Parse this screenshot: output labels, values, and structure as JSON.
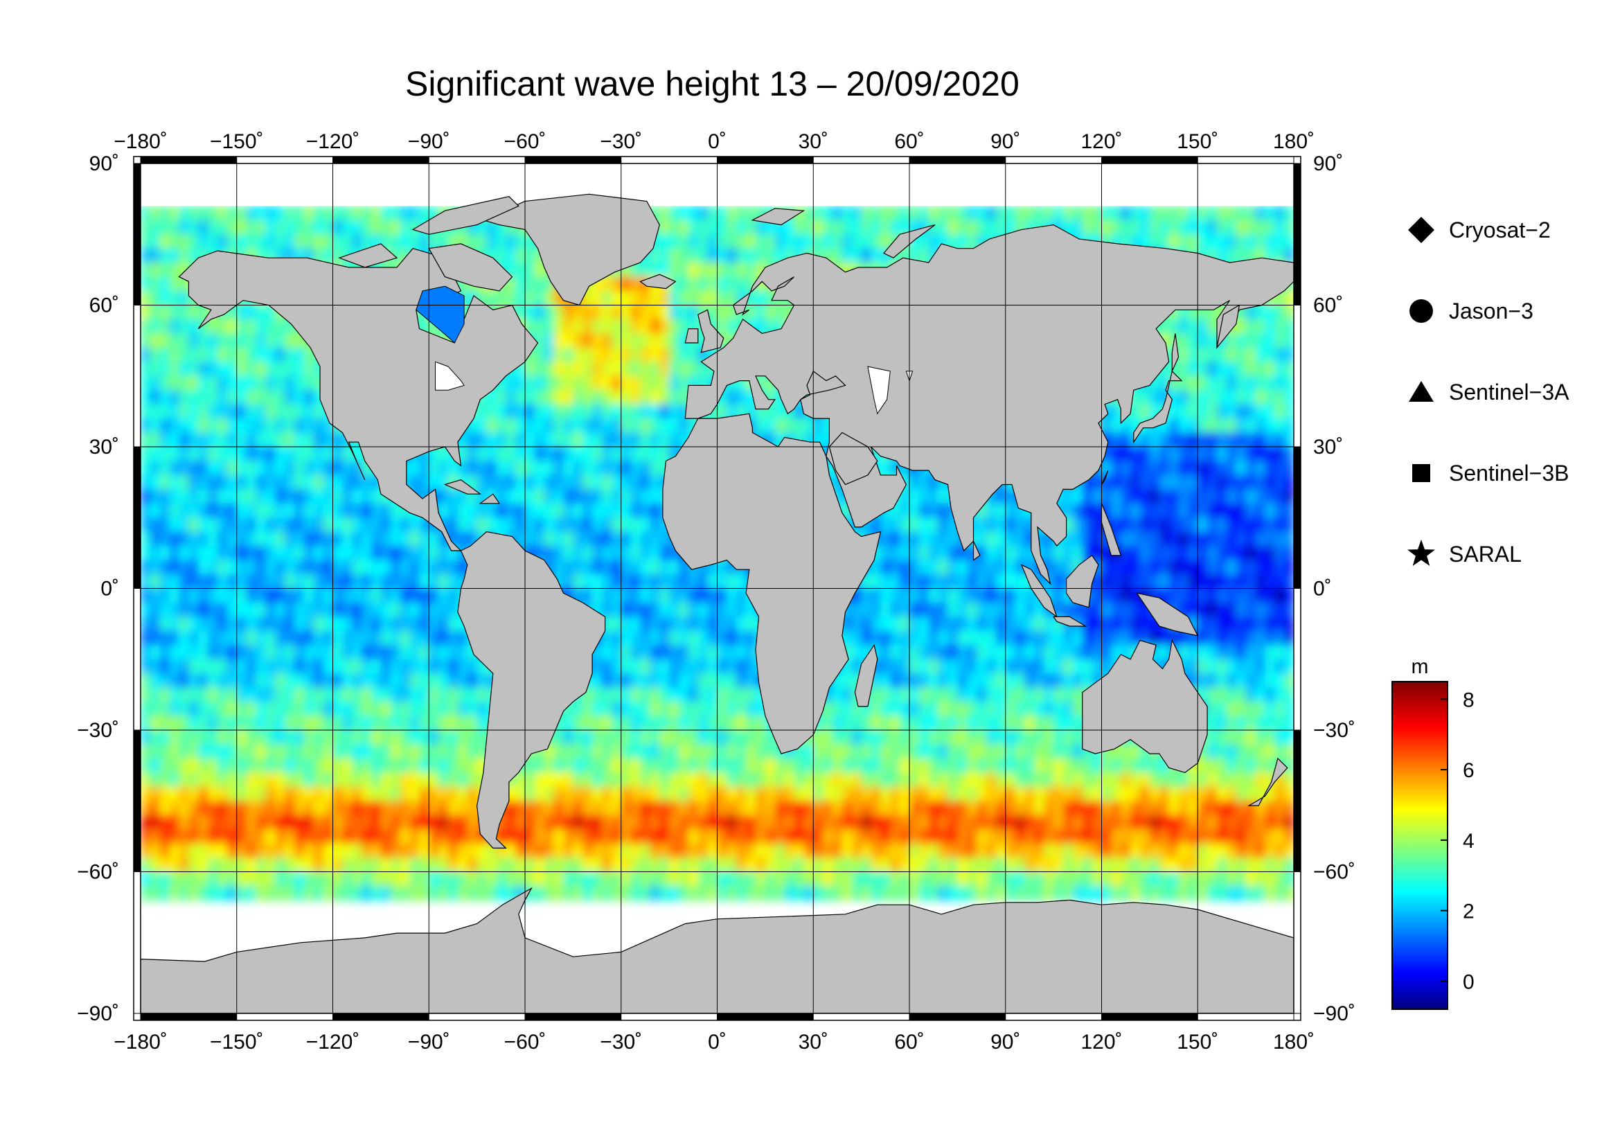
{
  "title": "Significant wave height 13 – 20/09/2020",
  "map": {
    "projection": "equirectangular",
    "lon_range": [
      -180,
      180
    ],
    "lat_range": [
      -90,
      90
    ],
    "lon_ticks": [
      {
        "v": -180,
        "label": "−180˚"
      },
      {
        "v": -150,
        "label": "−150˚"
      },
      {
        "v": -120,
        "label": "−120˚"
      },
      {
        "v": -90,
        "label": "−90˚"
      },
      {
        "v": -60,
        "label": "−60˚"
      },
      {
        "v": -30,
        "label": "−30˚"
      },
      {
        "v": 0,
        "label": "0˚"
      },
      {
        "v": 30,
        "label": "30˚"
      },
      {
        "v": 60,
        "label": "60˚"
      },
      {
        "v": 90,
        "label": "90˚"
      },
      {
        "v": 120,
        "label": "120˚"
      },
      {
        "v": 150,
        "label": "150˚"
      },
      {
        "v": 180,
        "label": "180˚"
      }
    ],
    "lat_ticks": [
      {
        "v": 90,
        "label": "90˚"
      },
      {
        "v": 60,
        "label": "60˚"
      },
      {
        "v": 30,
        "label": "30˚"
      },
      {
        "v": 0,
        "label": "0˚"
      },
      {
        "v": -30,
        "label": "−30˚"
      },
      {
        "v": -60,
        "label": "−60˚"
      },
      {
        "v": -90,
        "label": "−90˚"
      }
    ],
    "colors": {
      "land": "#c0c0c0",
      "ice": "#ffffff",
      "grid": "#000000"
    }
  },
  "legend": {
    "items": [
      {
        "symbol": "diamond",
        "label": "Cryosat−2"
      },
      {
        "symbol": "circle",
        "label": "Jason−3"
      },
      {
        "symbol": "triangle",
        "label": "Sentinel−3A"
      },
      {
        "symbol": "square",
        "label": "Sentinel−3B"
      },
      {
        "symbol": "star",
        "label": "SARAL"
      }
    ]
  },
  "colorbar": {
    "unit": "m",
    "range": [
      -0.8,
      8.5
    ],
    "ticks": [
      {
        "v": 8,
        "label": "8"
      },
      {
        "v": 6,
        "label": "6"
      },
      {
        "v": 4,
        "label": "4"
      },
      {
        "v": 2,
        "label": "2"
      },
      {
        "v": 0,
        "label": "0"
      }
    ],
    "colormap": "jet"
  },
  "field_regions": [
    {
      "name": "southern-ocean-storm-belt",
      "lat": [
        -60,
        -38
      ],
      "value": 6.5
    },
    {
      "name": "north-atlantic-high-waves",
      "lat": [
        45,
        65
      ],
      "lon": [
        -40,
        -20
      ],
      "value": 7
    },
    {
      "name": "tropics",
      "lat": [
        -15,
        20
      ],
      "value": 2
    },
    {
      "name": "west-pacific-warm-pool",
      "lat": [
        -10,
        30
      ],
      "lon": [
        120,
        180
      ],
      "value": 1
    }
  ]
}
